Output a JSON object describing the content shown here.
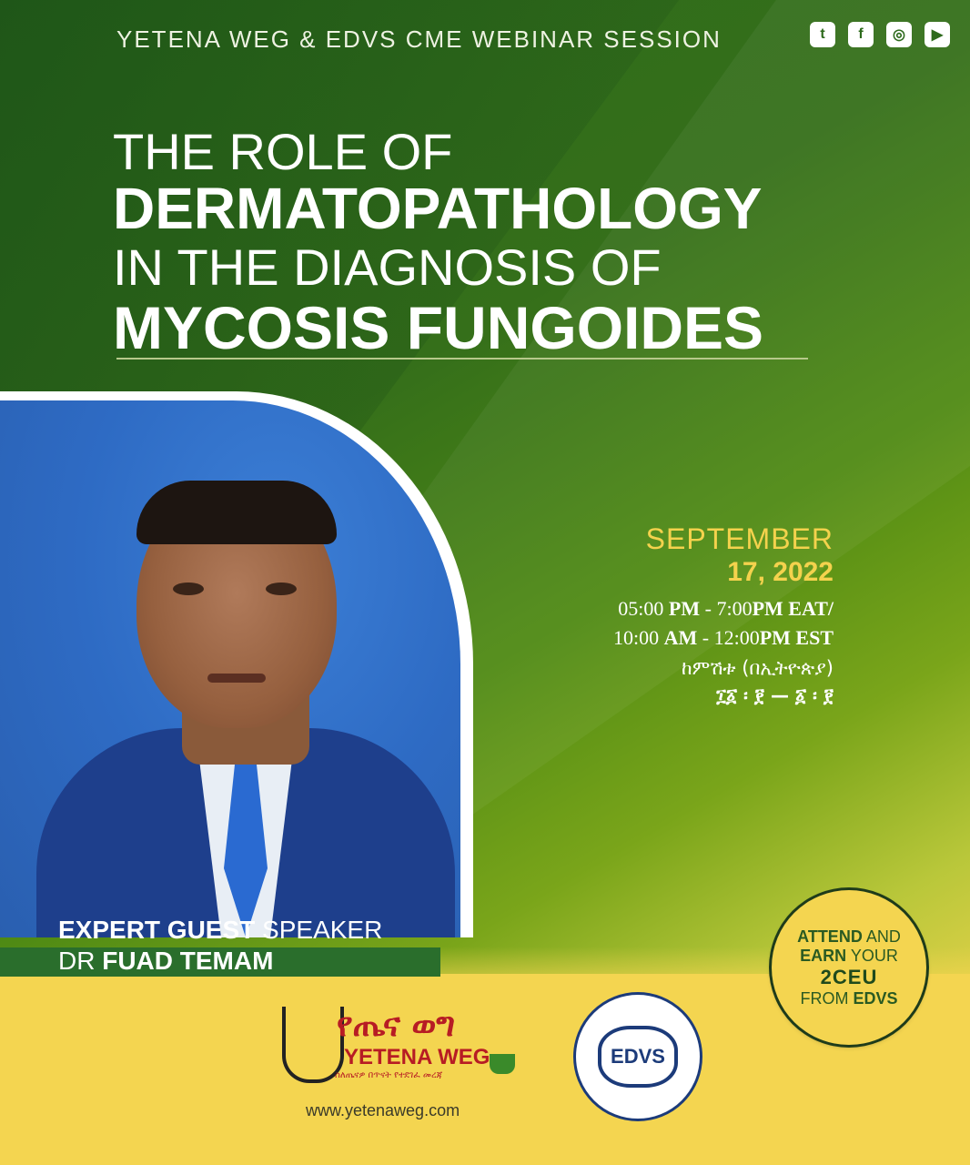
{
  "header": {
    "session_label": "YETENA WEG & EDVS CME WEBINAR SESSION",
    "socials": {
      "twitter": "twitter-icon",
      "facebook": "facebook-icon",
      "instagram": "instagram-icon",
      "youtube": "youtube-icon"
    }
  },
  "title": {
    "line1": "THE ROLE OF",
    "line2": "DERMATOPATHOLOGY",
    "line3": "IN THE DIAGNOSIS OF",
    "line4": "MYCOSIS FUNGOIDES"
  },
  "speaker": {
    "role_bold": "EXPERT GUEST",
    "role_rest": " SPEAKER",
    "name_prefix": "DR ",
    "name": "FUAD TEMAM"
  },
  "schedule": {
    "month": "SEPTEMBER",
    "day_year": "17, 2022",
    "time_eat_start": "05:00",
    "time_eat_pm": "PM",
    "time_eat_rest": " - 7:00",
    "time_eat_end": "PM EAT/",
    "time_est_start": "10:00",
    "time_est_am": "AM",
    "time_est_rest": " - 12:00",
    "time_est_end": "PM EST",
    "amharic_label": "ከምሽቱ (በኢትዮጵያ)",
    "amharic_time": "፲፩ ፡ ፻ — ፩ ፡ ፻"
  },
  "badge": {
    "attend": "ATTEND",
    "and": " AND",
    "earn": "EARN",
    "your": " YOUR",
    "ceu": "2CEU",
    "from": "FROM ",
    "edvs": "EDVS"
  },
  "logos": {
    "yetena_amharic": "የጤና ወግ",
    "yetena_name": "YETENA WEG",
    "yetena_tagline": "ስለጤናዎ በጥናት የተደገፈ መረጃ",
    "yetena_url": "www.yetenaweg.com",
    "edvs_text": "EDVS"
  }
}
